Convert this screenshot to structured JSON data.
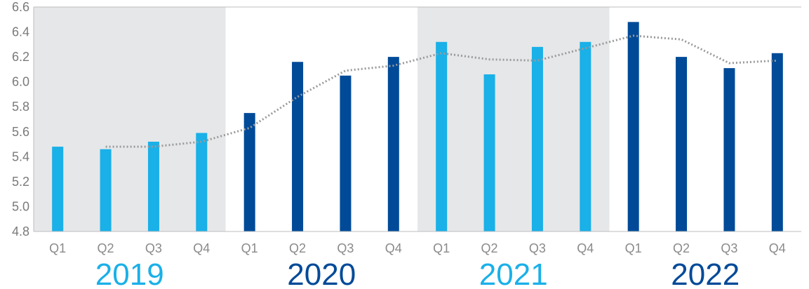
{
  "chart_data": {
    "type": "bar",
    "title": "",
    "xlabel": "",
    "ylabel": "",
    "ylim": [
      4.8,
      6.6
    ],
    "yticks": [
      "4.8",
      "5.0",
      "5.2",
      "5.4",
      "5.6",
      "5.8",
      "6.0",
      "6.2",
      "6.4",
      "6.6"
    ],
    "grid": false,
    "categories": [
      "Q1",
      "Q2",
      "Q3",
      "Q4",
      "Q1",
      "Q2",
      "Q3",
      "Q4",
      "Q1",
      "Q2",
      "Q3",
      "Q4",
      "Q1",
      "Q2",
      "Q3",
      "Q4"
    ],
    "groups": [
      {
        "label": "2019",
        "color": "#1ab0e8",
        "shaded": true
      },
      {
        "label": "2020",
        "color": "#004a98",
        "shaded": false
      },
      {
        "label": "2021",
        "color": "#1ab0e8",
        "shaded": true
      },
      {
        "label": "2022",
        "color": "#004a98",
        "shaded": false
      }
    ],
    "values": [
      5.48,
      5.46,
      5.52,
      5.59,
      5.75,
      6.16,
      6.05,
      6.2,
      6.32,
      6.06,
      6.28,
      6.32,
      6.48,
      6.2,
      6.11,
      6.23
    ],
    "trend": [
      null,
      5.48,
      5.48,
      5.52,
      5.63,
      5.88,
      6.09,
      6.13,
      6.23,
      6.18,
      6.17,
      6.27,
      6.37,
      6.34,
      6.15,
      6.17
    ],
    "colors": {
      "light_bar": "#1ab0e8",
      "dark_bar": "#004a98",
      "shade": "#e6e7e9",
      "trend": "#9a9a9a",
      "axis": "#bdbdbd"
    }
  }
}
